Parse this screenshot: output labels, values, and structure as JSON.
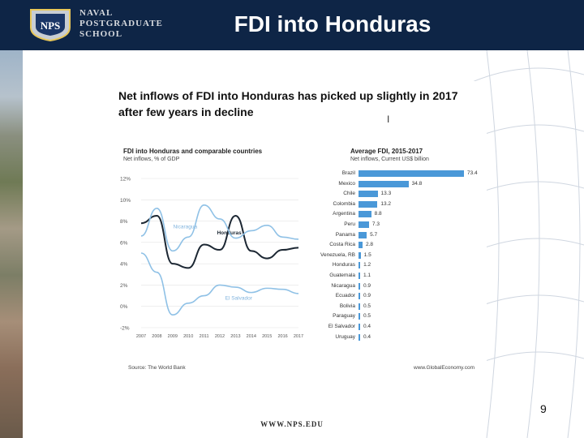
{
  "header": {
    "logo_lines": [
      "NAVAL",
      "POSTGRADUATE",
      "SCHOOL"
    ],
    "logo_badge_text": "NPS",
    "title": "FDI into Honduras"
  },
  "content": {
    "headline_line1": "Net inflows of FDI into Honduras has picked up slightly in 2017",
    "headline_line2": "after few years in decline"
  },
  "chart_data": [
    {
      "type": "line",
      "title": "FDI into Honduras and comparable countries",
      "subtitle": "Net inflows, % of GDP",
      "x": [
        "2007",
        "2008",
        "2009",
        "2010",
        "2011",
        "2012",
        "2013",
        "2014",
        "2015",
        "2016",
        "2017"
      ],
      "yticks": [
        "12%",
        "10%",
        "8%",
        "6%",
        "4%",
        "2%",
        "0%",
        "-2%"
      ],
      "ylim": [
        -2,
        12
      ],
      "series": [
        {
          "name": "Honduras",
          "color": "#1c2733",
          "values": [
            7.8,
            8.5,
            4.0,
            3.6,
            5.8,
            5.3,
            8.5,
            5.2,
            4.5,
            5.3,
            5.5
          ]
        },
        {
          "name": "Nicaragua",
          "color": "#8fc1e6",
          "values": [
            6.6,
            9.2,
            5.2,
            6.5,
            9.5,
            8.2,
            6.4,
            7.1,
            7.6,
            6.5,
            6.3
          ]
        },
        {
          "name": "El Salvador",
          "color": "#8fc1e6",
          "values": [
            5.0,
            3.2,
            -0.8,
            0.3,
            1.0,
            2.0,
            1.8,
            1.3,
            1.7,
            1.6,
            1.2
          ]
        }
      ],
      "source": "Source: The World Bank"
    },
    {
      "type": "bar",
      "orientation": "horizontal",
      "title": "Average FDI, 2015-2017",
      "subtitle": "Net inflows, Current US$ billion",
      "color": "#4a98d8",
      "categories": [
        "Brazil",
        "Mexico",
        "Chile",
        "Colombia",
        "Argentina",
        "Peru",
        "Panama",
        "Costa Rica",
        "Venezuela, RB",
        "Honduras",
        "Guatemala",
        "Nicaragua",
        "Ecuador",
        "Bolivia",
        "Paraguay",
        "El Salvador",
        "Uruguay"
      ],
      "values": [
        73.4,
        34.8,
        13.3,
        13.2,
        8.8,
        7.3,
        5.7,
        2.8,
        1.5,
        1.2,
        1.1,
        0.9,
        0.9,
        0.5,
        0.5,
        0.4,
        0.4
      ],
      "value_labels": [
        "73.4",
        "34.8",
        "13.3",
        "13.2",
        "8.8",
        "7.3",
        "5.7",
        "2.8",
        "1.5",
        "1.2",
        "1.1",
        "0.9",
        "0.9",
        "0.5",
        "0.5",
        "0.4",
        "0.4"
      ],
      "source": "www.GlobalEconomy.com"
    }
  ],
  "footer": {
    "page_number": "9",
    "url": "WWW.NPS.EDU"
  }
}
